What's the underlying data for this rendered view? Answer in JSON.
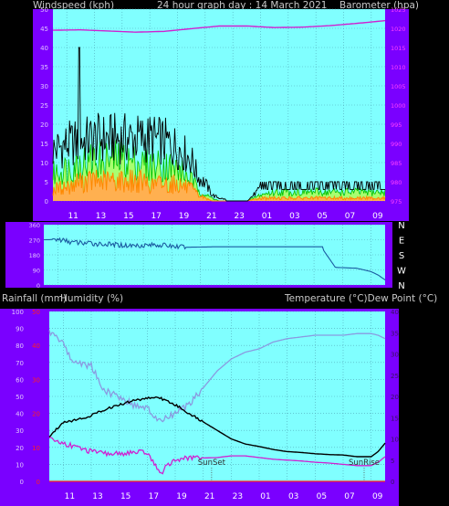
{
  "header": {
    "windspeed_label": "Windspeed (kph)",
    "title": "24 hour graph day : 14 March 2021",
    "barometer_label": "Barometer (hpa)"
  },
  "labels": {
    "rainfall": "Rainfall (mm)",
    "humidity": "Humidity (%)",
    "temperature": "Temperature (°C)",
    "dewpoint": "Dew Point (°C)",
    "sunset": "SunSet",
    "sunrise": "SunRise"
  },
  "colors": {
    "panel_bg": "#7a00ff",
    "plot_bg": "#80ffff",
    "grid": "#4fa8b8",
    "gust": "#000000",
    "wind_avg": "#00c000",
    "wind_light": "#a8ff70",
    "wind_low": "#ff8800",
    "barometer": "#d020d0",
    "direction": "#1a5aa0",
    "humidity": "#8a9ae0",
    "temperature": "#000000",
    "dewpoint": "#d020d0"
  },
  "chart_data": [
    {
      "type": "line",
      "name": "wind-baro",
      "x_ticks": [
        "11",
        "13",
        "15",
        "17",
        "19",
        "21",
        "23",
        "01",
        "03",
        "05",
        "07",
        "09"
      ],
      "y_left_ticks": [
        "0",
        "5",
        "10",
        "15",
        "20",
        "25",
        "30",
        "35",
        "40",
        "45",
        "50"
      ],
      "y_right_ticks": [
        "975",
        "980",
        "985",
        "990",
        "995",
        "1000",
        "1005",
        "1010",
        "1015",
        "1020",
        "1025"
      ],
      "ylim_left": [
        0,
        50
      ],
      "ylim_right": [
        975,
        1025
      ],
      "gust_peak": 40,
      "gust_envelope": {
        "x": [
          9,
          10,
          11,
          12,
          13,
          14,
          15,
          16,
          17,
          18,
          19,
          19.5,
          20,
          20.5,
          21,
          22,
          23,
          24,
          25,
          26,
          27,
          28,
          29,
          30,
          31,
          32,
          33
        ],
        "y": [
          17,
          19,
          20,
          21,
          21,
          21,
          21,
          21,
          20,
          18,
          14,
          8,
          6,
          2,
          1,
          0,
          0,
          4,
          5,
          5,
          5,
          5,
          5,
          5,
          5,
          5,
          5
        ]
      },
      "avg_envelope": {
        "x": [
          9,
          10,
          11,
          12,
          13,
          14,
          15,
          16,
          17,
          18,
          19,
          19.5,
          20,
          20.5,
          21,
          22,
          23,
          24,
          25,
          26,
          27,
          28,
          29,
          30,
          31,
          32,
          33
        ],
        "y": [
          9,
          11,
          13,
          14,
          14,
          14,
          13,
          12,
          12,
          11,
          7,
          4,
          2,
          1,
          0,
          0,
          0,
          2,
          3,
          3,
          3,
          3,
          3,
          3,
          3,
          3,
          3
        ]
      },
      "low_envelope": {
        "x": [
          9,
          10,
          11,
          12,
          13,
          14,
          15,
          16,
          17,
          18,
          19,
          19.5,
          20,
          20.5,
          21,
          22,
          23,
          24,
          25,
          26,
          27,
          28,
          29,
          30,
          31,
          32,
          33
        ],
        "y": [
          4,
          5,
          7,
          7,
          7,
          7,
          7,
          6,
          6,
          6,
          4,
          2,
          1,
          0,
          0,
          0,
          0,
          1,
          1,
          1,
          1,
          1,
          1,
          1,
          1,
          1,
          1
        ]
      },
      "barometer": {
        "x": [
          9,
          11,
          13,
          15,
          17,
          19,
          21,
          23,
          25,
          27,
          29,
          31,
          33
        ],
        "y": [
          1019.5,
          1019.6,
          1019.3,
          1019,
          1019.2,
          1019.9,
          1020.6,
          1020.6,
          1020.2,
          1020.3,
          1020.7,
          1021.3,
          1022
        ]
      }
    },
    {
      "type": "line",
      "name": "wind-direction",
      "y_ticks": [
        "0",
        "90",
        "180",
        "270",
        "360"
      ],
      "y_right_labels": [
        "N",
        "W",
        "S",
        "E",
        "N"
      ],
      "ylim": [
        0,
        360
      ],
      "series": [
        {
          "x": [
            9,
            10,
            11,
            13,
            15,
            17,
            19,
            21,
            23,
            25,
            27,
            28.5,
            29.5,
            31,
            32,
            32.5,
            33
          ],
          "y": [
            270,
            272,
            255,
            245,
            235,
            240,
            225,
            228,
            228,
            228,
            228,
            228,
            105,
            100,
            80,
            60,
            30
          ]
        }
      ]
    },
    {
      "type": "line",
      "name": "temp-hum-rain",
      "x_ticks": [
        "11",
        "13",
        "15",
        "17",
        "19",
        "21",
        "23",
        "01",
        "03",
        "05",
        "07",
        "09"
      ],
      "y_left_ticks": [
        "0",
        "10",
        "20",
        "30",
        "40",
        "50",
        "60",
        "70",
        "80",
        "90",
        "100"
      ],
      "y_rain_ticks": [
        "0",
        "10",
        "20",
        "30",
        "40",
        "50"
      ],
      "y_right_ticks": [
        "0",
        "5",
        "10",
        "15",
        "20",
        "25",
        "30",
        "35",
        "40"
      ],
      "ylim_left": [
        0,
        100
      ],
      "ylim_rain": [
        0,
        50
      ],
      "ylim_right": [
        0,
        40
      ],
      "sunset_x": 20.6,
      "sunrise_x": 31.5,
      "series": [
        {
          "name": "Humidity (%)",
          "x": [
            9,
            9.5,
            10,
            10.5,
            11,
            12,
            12.5,
            13,
            14,
            15,
            16,
            16.5,
            17,
            17.5,
            18,
            19,
            20,
            21,
            22,
            23,
            24,
            25,
            26,
            27,
            28,
            29,
            30,
            31,
            32,
            32.5,
            33
          ],
          "y": [
            88,
            85,
            82,
            72,
            70,
            68,
            60,
            53,
            50,
            45,
            43,
            38,
            35,
            38,
            40,
            45,
            55,
            65,
            72,
            76,
            78,
            82,
            84,
            85,
            86,
            86,
            86,
            87,
            87,
            86,
            84
          ]
        },
        {
          "name": "Temperature (°C)",
          "x": [
            9,
            10,
            11,
            12,
            13,
            14,
            15,
            16,
            16.5,
            17,
            18,
            19,
            20,
            21,
            22,
            23,
            24,
            25,
            26,
            27,
            28,
            29,
            30,
            31,
            32,
            32.5,
            33
          ],
          "y": [
            10.5,
            14,
            14.5,
            15.5,
            17,
            18,
            19,
            19.6,
            19.8,
            19.5,
            18,
            16,
            14,
            12,
            10,
            8.8,
            8.2,
            7.5,
            7,
            6.8,
            6.5,
            6.3,
            6.2,
            5.8,
            5.8,
            7,
            9
          ]
        },
        {
          "name": "Dew Point (°C)",
          "x": [
            9,
            10,
            11,
            12,
            13,
            14,
            15,
            16,
            16.5,
            17,
            17.5,
            18,
            19,
            20,
            21,
            22,
            23,
            24,
            25,
            26,
            27,
            28,
            29,
            30,
            31,
            32,
            32.5,
            33
          ],
          "y": [
            10,
            9,
            8,
            7,
            6.5,
            6.5,
            6.8,
            6.8,
            4,
            2,
            4,
            5,
            5.5,
            5.5,
            5.6,
            6,
            6,
            5.6,
            5.2,
            5,
            4.8,
            4.5,
            4.3,
            4,
            3.7,
            3.7,
            4.5,
            5.8
          ]
        },
        {
          "name": "Rainfall (mm)",
          "x": [
            9,
            33
          ],
          "y": [
            0,
            0
          ]
        }
      ]
    }
  ]
}
